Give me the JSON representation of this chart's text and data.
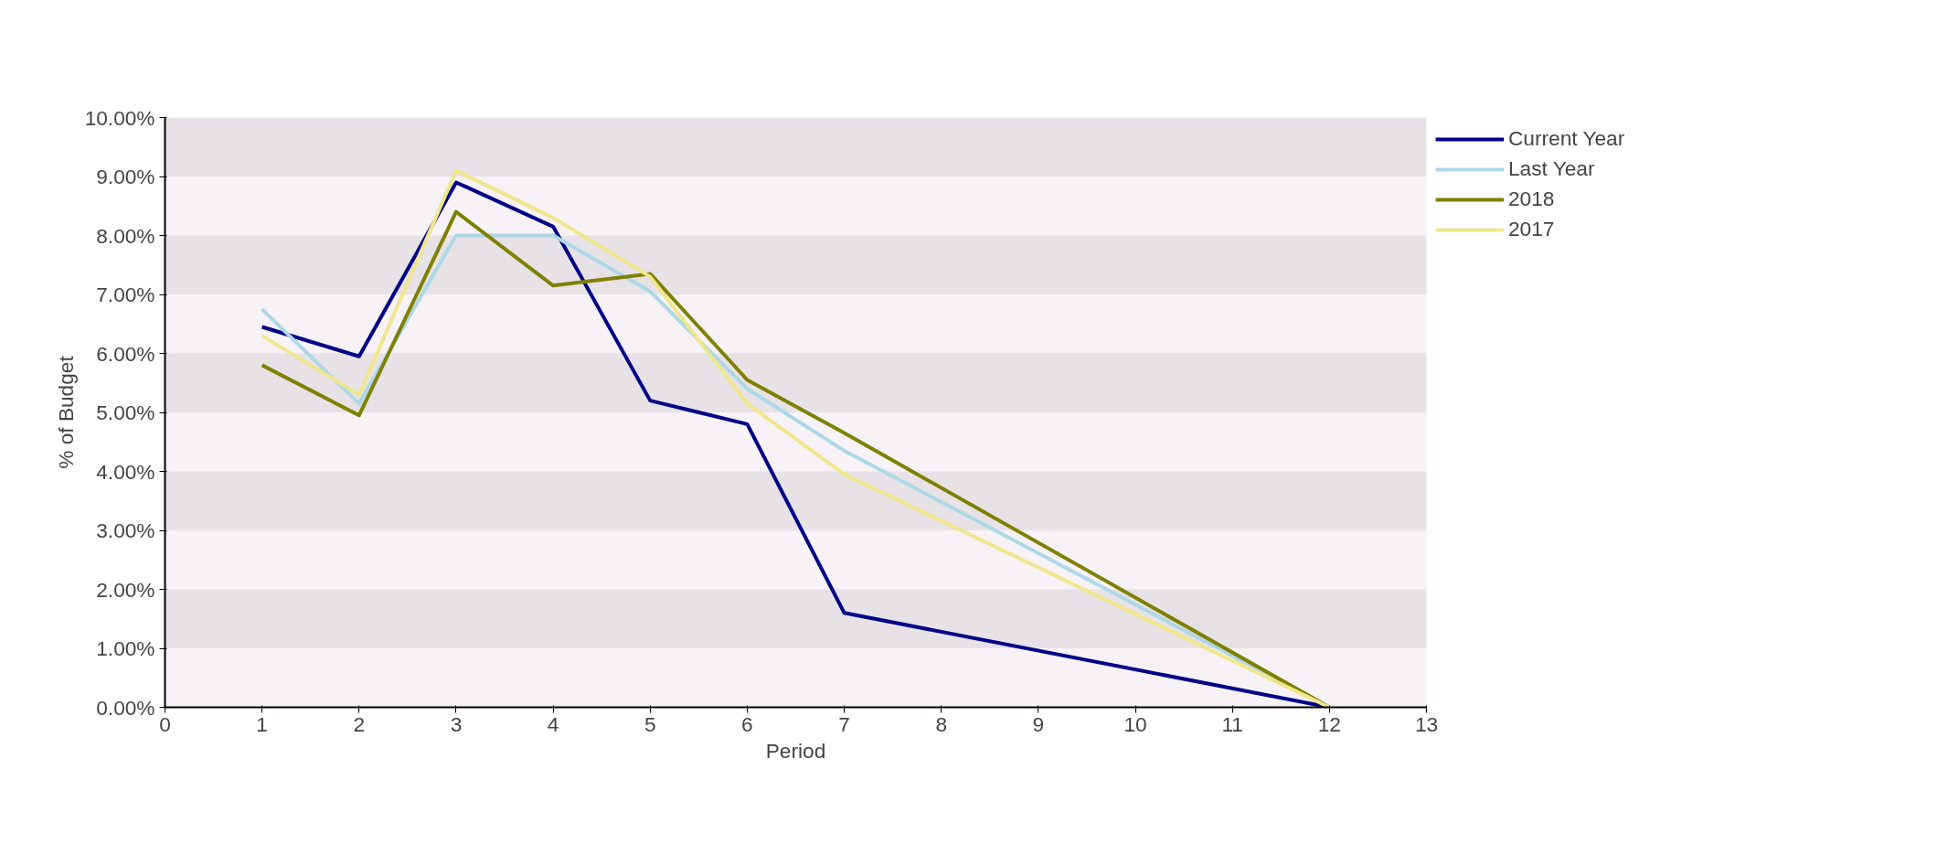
{
  "chart_data": {
    "type": "line",
    "xlabel": "Period",
    "ylabel": "% of Budget",
    "xlim": [
      0,
      13
    ],
    "xticks": [
      0,
      1,
      2,
      3,
      4,
      5,
      6,
      7,
      8,
      9,
      10,
      11,
      12,
      13
    ],
    "ylim": [
      0,
      10
    ],
    "yticks": [
      {
        "value": 0,
        "label": "0.00%"
      },
      {
        "value": 1,
        "label": "1.00%"
      },
      {
        "value": 2,
        "label": "2.00%"
      },
      {
        "value": 3,
        "label": "3.00%"
      },
      {
        "value": 4,
        "label": "4.00%"
      },
      {
        "value": 5,
        "label": "5.00%"
      },
      {
        "value": 6,
        "label": "6.00%"
      },
      {
        "value": 7,
        "label": "7.00%"
      },
      {
        "value": 8,
        "label": "8.00%"
      },
      {
        "value": 9,
        "label": "9.00%"
      },
      {
        "value": 10,
        "label": "10.00%"
      }
    ],
    "legend": "top right",
    "marker": "none",
    "line_style": "solid",
    "x": [
      1,
      2,
      3,
      4,
      5,
      6,
      7,
      12
    ],
    "series": [
      {
        "name": "Current Year",
        "color": "#000088",
        "values": [
          6.45,
          5.95,
          8.9,
          8.15,
          5.2,
          4.8,
          1.6,
          0
        ]
      },
      {
        "name": "Last Year",
        "color": "#add8e6",
        "values": [
          6.75,
          5.15,
          8.0,
          8.0,
          7.05,
          5.4,
          4.35,
          0
        ]
      },
      {
        "name": "2018",
        "color": "#808000",
        "values": [
          5.8,
          4.95,
          8.4,
          7.15,
          7.35,
          5.55,
          4.65,
          0
        ]
      },
      {
        "name": "2017",
        "color": "#f0e68c",
        "values": [
          6.3,
          5.3,
          9.1,
          8.3,
          7.3,
          5.15,
          3.95,
          0
        ]
      }
    ]
  }
}
